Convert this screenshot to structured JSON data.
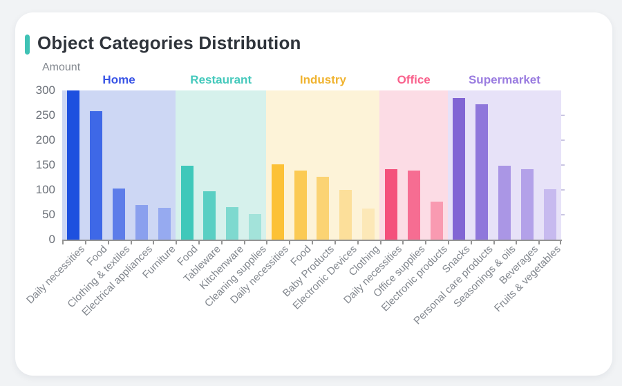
{
  "header": {
    "title": "Object Categories Distribution",
    "accent_color": "#3fc2b5"
  },
  "chart_data": {
    "type": "bar",
    "title": "Object Categories Distribution",
    "xlabel": "",
    "ylabel": "Amount",
    "ylim": [
      0,
      300
    ],
    "y_ticks": [
      300,
      250,
      200,
      150,
      100,
      50,
      0
    ],
    "grid": false,
    "legend_position": "group labels above plot bands",
    "groups": [
      {
        "name": "Home",
        "label_color": "#3a55e6",
        "band_color": "#cdd7f4",
        "bars": [
          {
            "category": "Daily necessities",
            "value": 300,
            "color": "#1d50df"
          },
          {
            "category": "Food",
            "value": 258,
            "color": "#3e68e7"
          },
          {
            "category": "Clothing & textiles",
            "value": 103,
            "color": "#5d7de9"
          },
          {
            "category": "Electrical appliances",
            "value": 70,
            "color": "#8aa0ee"
          },
          {
            "category": "Furniture",
            "value": 64,
            "color": "#96aaf0"
          }
        ]
      },
      {
        "name": "Restaurant",
        "label_color": "#45c9bc",
        "band_color": "#d6f1ec",
        "bars": [
          {
            "category": "Food",
            "value": 148,
            "color": "#3fc8ba"
          },
          {
            "category": "Tableware",
            "value": 97,
            "color": "#59cfc3"
          },
          {
            "category": "Kitchenware",
            "value": 65,
            "color": "#7ed9cf"
          },
          {
            "category": "Cleaning supplies",
            "value": 51,
            "color": "#a3e3da"
          }
        ]
      },
      {
        "name": "Industry",
        "label_color": "#f0b32f",
        "band_color": "#fdf3d8",
        "bars": [
          {
            "category": "Daily necessities",
            "value": 151,
            "color": "#fcc136"
          },
          {
            "category": "Food",
            "value": 139,
            "color": "#fbca54"
          },
          {
            "category": "Baby Products",
            "value": 126,
            "color": "#fbd373"
          },
          {
            "category": "Electronic Devices",
            "value": 100,
            "color": "#fcdf9a"
          },
          {
            "category": "Clothing",
            "value": 63,
            "color": "#fce8b7"
          }
        ]
      },
      {
        "name": "Office",
        "label_color": "#f9618c",
        "band_color": "#fcdce5",
        "bars": [
          {
            "category": "Daily necessities",
            "value": 142,
            "color": "#f4517c"
          },
          {
            "category": "Office supplies",
            "value": 139,
            "color": "#f66d92"
          },
          {
            "category": "Electronic products",
            "value": 76,
            "color": "#f99ab1"
          }
        ]
      },
      {
        "name": "Supermarket",
        "label_color": "#9a7ce0",
        "band_color": "#e7e2f8",
        "bars": [
          {
            "category": "Snacks",
            "value": 285,
            "color": "#8165d4"
          },
          {
            "category": "Personal care products",
            "value": 272,
            "color": "#8f77db"
          },
          {
            "category": "Seasonings & oils",
            "value": 148,
            "color": "#aa96e5"
          },
          {
            "category": "Beverages",
            "value": 141,
            "color": "#b3a1e9"
          },
          {
            "category": "Fruits & vegetables",
            "value": 102,
            "color": "#c7baef"
          }
        ]
      }
    ]
  }
}
